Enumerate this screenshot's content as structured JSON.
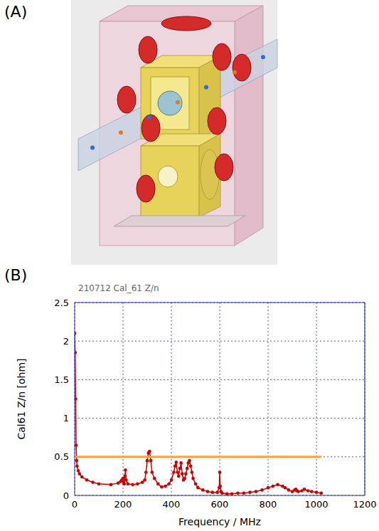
{
  "panel_a": {
    "label": "(A)"
  },
  "panel_b": {
    "label": "(B)"
  },
  "chart_data": {
    "type": "line",
    "title": "210712 Cal_61 Z/n",
    "x_label": "Frequency / MHz",
    "y_label": "Cal61 Z/n [ohm]",
    "xlim": [
      0,
      1200
    ],
    "xticks": [
      0,
      200,
      400,
      600,
      800,
      1000,
      1200
    ],
    "ylim": [
      0,
      2.5
    ],
    "yticks": [
      0,
      0.5,
      1,
      1.5,
      2,
      2.5
    ],
    "grid": true,
    "series": [
      {
        "color": "#cc0000",
        "marker": "circle",
        "line_style": "solid",
        "x": [
          0,
          2,
          4,
          6,
          8,
          10,
          15,
          20,
          30,
          50,
          75,
          100,
          150,
          180,
          190,
          195,
          200,
          203,
          205,
          208,
          210,
          213,
          220,
          240,
          260,
          280,
          290,
          295,
          300,
          305,
          310,
          315,
          320,
          330,
          345,
          360,
          375,
          390,
          400,
          410,
          415,
          420,
          425,
          430,
          435,
          440,
          445,
          450,
          455,
          460,
          465,
          470,
          475,
          480,
          485,
          490,
          500,
          510,
          530,
          550,
          570,
          590,
          598,
          600,
          602,
          605,
          610,
          630,
          650,
          675,
          700,
          725,
          750,
          775,
          800,
          820,
          840,
          860,
          870,
          885,
          900,
          910,
          915,
          920,
          925,
          940,
          950,
          965,
          980,
          1000,
          1020
        ],
        "values": [
          2.1,
          1.85,
          1.25,
          0.65,
          0.45,
          0.38,
          0.32,
          0.28,
          0.24,
          0.2,
          0.17,
          0.15,
          0.14,
          0.16,
          0.18,
          0.2,
          0.22,
          0.17,
          0.15,
          0.25,
          0.33,
          0.2,
          0.15,
          0.14,
          0.15,
          0.17,
          0.2,
          0.3,
          0.45,
          0.55,
          0.57,
          0.45,
          0.3,
          0.22,
          0.15,
          0.11,
          0.12,
          0.15,
          0.2,
          0.3,
          0.38,
          0.43,
          0.3,
          0.25,
          0.35,
          0.42,
          0.28,
          0.2,
          0.22,
          0.28,
          0.35,
          0.42,
          0.45,
          0.38,
          0.3,
          0.22,
          0.15,
          0.1,
          0.07,
          0.05,
          0.04,
          0.04,
          0.1,
          0.3,
          0.12,
          0.05,
          0.03,
          0.02,
          0.02,
          0.03,
          0.03,
          0.04,
          0.05,
          0.07,
          0.1,
          0.12,
          0.14,
          0.12,
          0.1,
          0.07,
          0.05,
          0.07,
          0.08,
          0.06,
          0.05,
          0.06,
          0.08,
          0.06,
          0.05,
          0.04,
          0.03
        ]
      },
      {
        "color": "#ffa040",
        "line_style": "solid",
        "x": [
          0,
          20,
          40,
          60,
          80,
          100,
          120,
          140,
          160,
          180,
          200,
          220,
          240,
          260,
          280,
          300,
          320,
          340,
          360,
          380,
          400,
          420,
          440,
          460,
          480,
          500,
          520,
          540,
          560,
          580,
          600,
          620,
          640,
          660,
          680,
          700,
          720,
          740,
          760,
          780,
          800,
          820,
          840,
          860,
          880,
          900,
          920,
          940,
          960,
          980,
          1000,
          1020
        ],
        "values": [
          0.5,
          0.5,
          0.5,
          0.5,
          0.5,
          0.5,
          0.5,
          0.5,
          0.5,
          0.5,
          0.5,
          0.5,
          0.5,
          0.5,
          0.5,
          0.5,
          0.5,
          0.5,
          0.5,
          0.5,
          0.5,
          0.5,
          0.5,
          0.5,
          0.5,
          0.5,
          0.5,
          0.5,
          0.5,
          0.5,
          0.5,
          0.5,
          0.5,
          0.5,
          0.5,
          0.5,
          0.5,
          0.5,
          0.5,
          0.5,
          0.5,
          0.5,
          0.5,
          0.5,
          0.5,
          0.5,
          0.5,
          0.5,
          0.5,
          0.5,
          0.5,
          0.5
        ]
      }
    ]
  }
}
